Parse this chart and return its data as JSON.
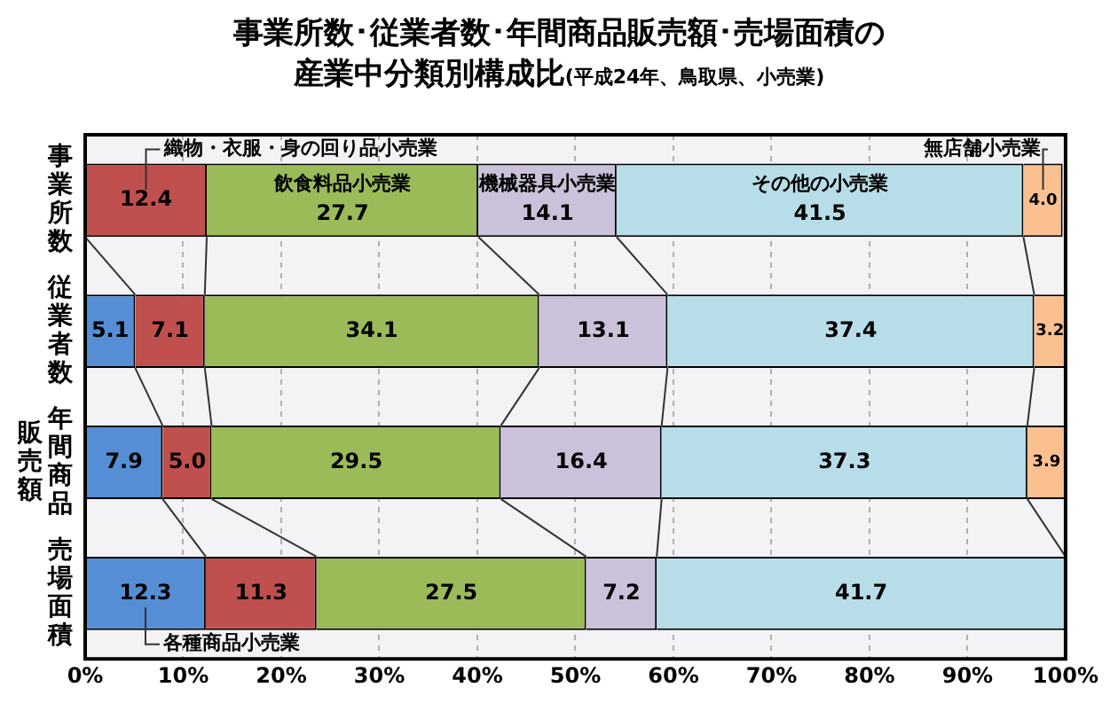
{
  "chart_data": {
    "type": "bar",
    "orientation": "horizontal",
    "stacked": true,
    "title": "事業所数･従業者数･年間商品販売額･売場面積の産業中分類別構成比",
    "subtitle": "(平成24年、鳥取県、小売業)",
    "categories": [
      "事業所数",
      "従業者数",
      "年間商品販売額",
      "売場面積"
    ],
    "series": [
      {
        "name": "各種商品小売業",
        "color": "#558ed5",
        "values": [
          null,
          5.1,
          7.9,
          12.3
        ],
        "value_labels": [
          null,
          "5.1",
          "7.9",
          "12.3"
        ]
      },
      {
        "name": "織物・衣服・身の回り品小売業",
        "color": "#c0504d",
        "values": [
          12.4,
          7.1,
          5.0,
          11.3
        ],
        "value_labels": [
          "12.4",
          "7.1",
          "5.0",
          "11.3"
        ]
      },
      {
        "name": "飲食料品小売業",
        "color": "#9bbb59",
        "values": [
          27.7,
          34.1,
          29.5,
          27.5
        ],
        "value_labels": [
          "27.7",
          "34.1",
          "29.5",
          "27.5"
        ]
      },
      {
        "name": "機械器具小売業",
        "color": "#ccc1da",
        "values": [
          14.1,
          13.1,
          16.4,
          7.2
        ],
        "value_labels": [
          "14.1",
          "13.1",
          "16.4",
          "7.2"
        ]
      },
      {
        "name": "その他の小売業",
        "color": "#b7dee8",
        "values": [
          41.5,
          37.4,
          37.3,
          41.7
        ],
        "value_labels": [
          "41.5",
          "37.4",
          "37.3",
          "41.7"
        ]
      },
      {
        "name": "無店舗小売業",
        "color": "#fac090",
        "values": [
          4.0,
          3.2,
          3.9,
          null
        ],
        "value_labels": [
          "4.0",
          "3.2",
          "3.9",
          null
        ]
      }
    ],
    "xlim": [
      0,
      100
    ],
    "xticks": [
      {
        "value": 0,
        "label": "0%"
      },
      {
        "value": 10,
        "label": "10%"
      },
      {
        "value": 20,
        "label": "20%"
      },
      {
        "value": 30,
        "label": "30%"
      },
      {
        "value": 40,
        "label": "40%"
      },
      {
        "value": 50,
        "label": "50%"
      },
      {
        "value": 60,
        "label": "60%"
      },
      {
        "value": 70,
        "label": "70%"
      },
      {
        "value": 80,
        "label": "80%"
      },
      {
        "value": 90,
        "label": "90%"
      },
      {
        "value": 100,
        "label": "100%"
      }
    ],
    "grid": "x",
    "legend": false
  }
}
